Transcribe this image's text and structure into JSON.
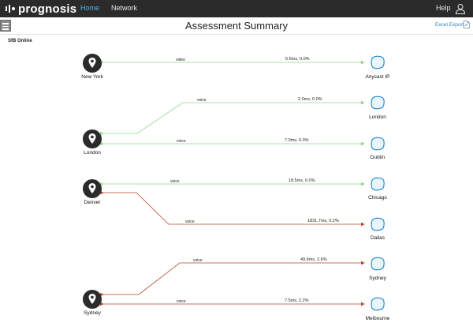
{
  "nav": {
    "brand": "prognosis",
    "home": "Home",
    "network": "Network",
    "help": "Help"
  },
  "header": {
    "title": "Assessment Summary",
    "export_label": "Excel Export"
  },
  "section_label": "SfB Online",
  "sources": [
    {
      "name": "New York"
    },
    {
      "name": "London"
    },
    {
      "name": "Denver"
    },
    {
      "name": "Sydney"
    }
  ],
  "destinations": [
    {
      "name": "Anycast IP"
    },
    {
      "name": "London"
    },
    {
      "name": "Dublin"
    },
    {
      "name": "Chicago"
    },
    {
      "name": "Dallas"
    },
    {
      "name": "Sydney"
    },
    {
      "name": "Melbourne"
    }
  ],
  "links": [
    {
      "from": "New York",
      "to": "Anycast IP",
      "type": "video",
      "stats": "6.5ms, 0.0%",
      "status": "good"
    },
    {
      "from": "London",
      "to": "London",
      "type": "voice",
      "stats": "2.0ms, 0.0%",
      "status": "good"
    },
    {
      "from": "London",
      "to": "Dublin",
      "type": "voice",
      "stats": "7.0ms, 0.0%",
      "status": "good"
    },
    {
      "from": "Denver",
      "to": "Chicago",
      "type": "voice",
      "stats": "18.5ms, 0.0%",
      "status": "good"
    },
    {
      "from": "Denver",
      "to": "Dallas",
      "type": "voice",
      "stats": "1831.7ms, 0.2%",
      "status": "bad"
    },
    {
      "from": "Sydney",
      "to": "Sydney",
      "type": "voice",
      "stats": "49.6ms, 2.6%",
      "status": "bad"
    },
    {
      "from": "Sydney",
      "to": "Melbourne",
      "type": "voice",
      "stats": "7.5ms, 2.2%",
      "status": "bad"
    }
  ],
  "colors": {
    "nav_bg": "#2b2b2b",
    "nav_active": "#4fb6e8",
    "link_good": "#8fd98f",
    "link_bad": "#b5482a",
    "cloud_stroke": "#2e8fcf",
    "pin_fill": "#2b2b2b",
    "export_link": "#2a7fc0"
  },
  "icons": {
    "menu": "hamburger-icon",
    "user": "user-icon",
    "export": "export-file-icon",
    "location": "location-pin-icon",
    "destination": "cloud-endpoint-icon"
  }
}
